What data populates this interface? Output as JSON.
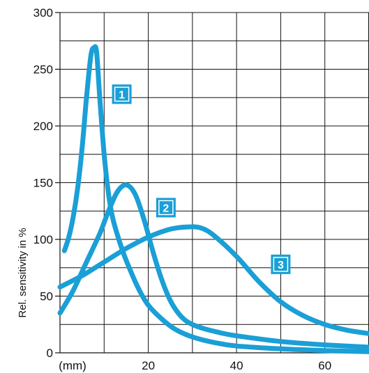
{
  "chart_data": {
    "type": "line",
    "title": "",
    "xlabel": "",
    "ylabel": "Rel. sensitivity in %",
    "x_unit_label": "(mm)",
    "xlim": [
      0,
      70
    ],
    "ylim": [
      0,
      300
    ],
    "x_ticks": [
      20,
      40,
      60
    ],
    "y_ticks": [
      0,
      50,
      100,
      150,
      200,
      250,
      300
    ],
    "x_grid_step": 10,
    "y_grid_step": 25,
    "grid": true,
    "series_color": "#1a9fd6",
    "marker_color": "#1a9fd6",
    "series": [
      {
        "marker": "1",
        "marker_at": [
          14,
          228
        ],
        "points": [
          [
            1,
            90
          ],
          [
            2,
            102
          ],
          [
            3,
            120
          ],
          [
            4,
            145
          ],
          [
            5,
            180
          ],
          [
            6,
            225
          ],
          [
            7,
            262
          ],
          [
            7.7,
            269
          ],
          [
            8.3,
            265
          ],
          [
            9,
            225
          ],
          [
            10,
            175
          ],
          [
            11,
            140
          ],
          [
            12,
            118
          ],
          [
            14,
            92
          ],
          [
            16,
            72
          ],
          [
            18,
            55
          ],
          [
            20,
            42
          ],
          [
            23,
            30
          ],
          [
            26,
            21
          ],
          [
            30,
            14
          ],
          [
            35,
            9
          ],
          [
            40,
            6
          ],
          [
            50,
            3.5
          ],
          [
            60,
            2
          ],
          [
            70,
            1
          ]
        ]
      },
      {
        "marker": "2",
        "marker_at": [
          24,
          128
        ],
        "points": [
          [
            0,
            35
          ],
          [
            3,
            55
          ],
          [
            6,
            80
          ],
          [
            9,
            105
          ],
          [
            11,
            125
          ],
          [
            13,
            142
          ],
          [
            15,
            148
          ],
          [
            17,
            140
          ],
          [
            19,
            118
          ],
          [
            21,
            90
          ],
          [
            23,
            65
          ],
          [
            25,
            46
          ],
          [
            27,
            34
          ],
          [
            29,
            27
          ],
          [
            32,
            22
          ],
          [
            36,
            18
          ],
          [
            40,
            15
          ],
          [
            50,
            10
          ],
          [
            60,
            7
          ],
          [
            70,
            5
          ]
        ]
      },
      {
        "marker": "3",
        "marker_at": [
          50,
          78
        ],
        "points": [
          [
            0,
            58
          ],
          [
            5,
            68
          ],
          [
            10,
            80
          ],
          [
            15,
            92
          ],
          [
            20,
            102
          ],
          [
            25,
            109
          ],
          [
            29,
            111
          ],
          [
            32,
            110
          ],
          [
            35,
            103
          ],
          [
            40,
            85
          ],
          [
            45,
            63
          ],
          [
            50,
            45
          ],
          [
            55,
            33
          ],
          [
            60,
            25
          ],
          [
            65,
            20
          ],
          [
            70,
            17
          ]
        ]
      }
    ]
  }
}
